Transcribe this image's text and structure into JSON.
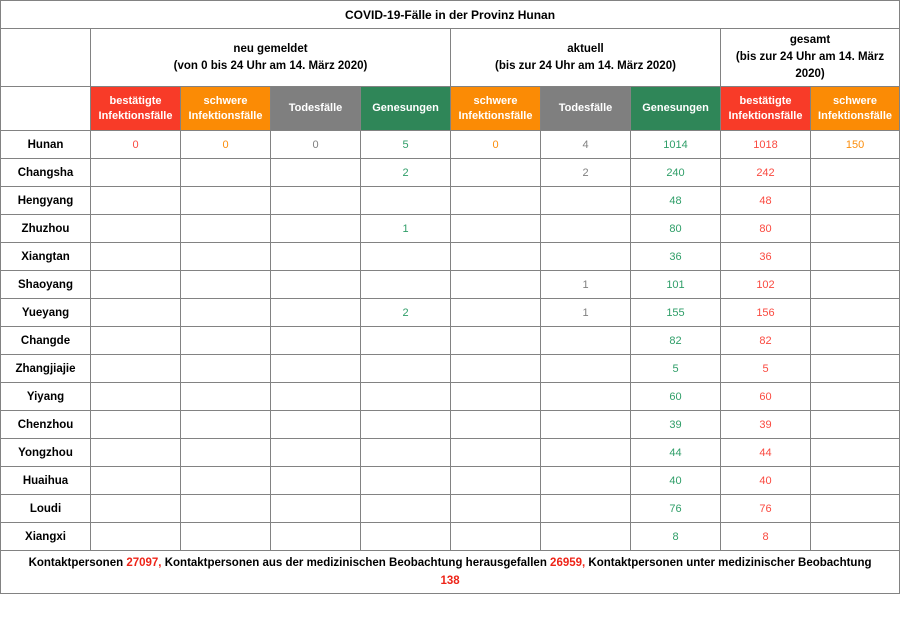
{
  "title": "COVID-19-Fälle in der Provinz Hunan",
  "colors": {
    "red": "#f83b28",
    "orange": "#fb8b05",
    "gray": "#7f7f7f",
    "green": "#2f8658",
    "text_red": "#fa4a40",
    "text_orange": "#fc8d0a",
    "text_gray": "#808080",
    "text_green": "#2f9e68",
    "footer_red": "#ee2418",
    "border": "#828282"
  },
  "chart_data": {
    "type": "table",
    "title": "COVID-19-Fälle in der Provinz Hunan",
    "column_groups": [
      {
        "label": "neu gemeldet",
        "period": "(von 0 bis 24 Uhr am 14. März 2020)",
        "span": 4
      },
      {
        "label": "aktuell",
        "period": "(bis zur 24 Uhr am 14. März 2020)",
        "span": 3
      },
      {
        "label": "gesamt",
        "period": "(bis zur 24 Uhr am 14. März 2020)",
        "span": 2
      }
    ],
    "columns": [
      {
        "label": "bestätigte Infektionsfälle",
        "color": "red"
      },
      {
        "label": "schwere Infektionsfälle",
        "color": "orange"
      },
      {
        "label": "Todesfälle",
        "color": "gray"
      },
      {
        "label": "Genesungen",
        "color": "green"
      },
      {
        "label": "schwere Infektionsfälle",
        "color": "orange"
      },
      {
        "label": "Todesfälle",
        "color": "gray"
      },
      {
        "label": "Genesungen",
        "color": "green"
      },
      {
        "label": "bestätigte Infektionsfälle",
        "color": "red"
      },
      {
        "label": "schwere Infektionsfälle",
        "color": "orange"
      }
    ],
    "rows": [
      {
        "region": "Hunan",
        "values": [
          "0",
          "0",
          "0",
          "5",
          "0",
          "4",
          "1014",
          "1018",
          "150"
        ]
      },
      {
        "region": "Changsha",
        "values": [
          "",
          "",
          "",
          "2",
          "",
          "2",
          "240",
          "242",
          ""
        ]
      },
      {
        "region": "Hengyang",
        "values": [
          "",
          "",
          "",
          "",
          "",
          "",
          "48",
          "48",
          ""
        ]
      },
      {
        "region": "Zhuzhou",
        "values": [
          "",
          "",
          "",
          "1",
          "",
          "",
          "80",
          "80",
          ""
        ]
      },
      {
        "region": "Xiangtan",
        "values": [
          "",
          "",
          "",
          "",
          "",
          "",
          "36",
          "36",
          ""
        ]
      },
      {
        "region": "Shaoyang",
        "values": [
          "",
          "",
          "",
          "",
          "",
          "1",
          "101",
          "102",
          ""
        ]
      },
      {
        "region": "Yueyang",
        "values": [
          "",
          "",
          "",
          "2",
          "",
          "1",
          "155",
          "156",
          ""
        ]
      },
      {
        "region": "Changde",
        "values": [
          "",
          "",
          "",
          "",
          "",
          "",
          "82",
          "82",
          ""
        ]
      },
      {
        "region": "Zhangjiajie",
        "values": [
          "",
          "",
          "",
          "",
          "",
          "",
          "5",
          "5",
          ""
        ]
      },
      {
        "region": "Yiyang",
        "values": [
          "",
          "",
          "",
          "",
          "",
          "",
          "60",
          "60",
          ""
        ]
      },
      {
        "region": "Chenzhou",
        "values": [
          "",
          "",
          "",
          "",
          "",
          "",
          "39",
          "39",
          ""
        ]
      },
      {
        "region": "Yongzhou",
        "values": [
          "",
          "",
          "",
          "",
          "",
          "",
          "44",
          "44",
          ""
        ]
      },
      {
        "region": "Huaihua",
        "values": [
          "",
          "",
          "",
          "",
          "",
          "",
          "40",
          "40",
          ""
        ]
      },
      {
        "region": "Loudi",
        "values": [
          "",
          "",
          "",
          "",
          "",
          "",
          "76",
          "76",
          ""
        ]
      },
      {
        "region": "Xiangxi",
        "values": [
          "",
          "",
          "",
          "",
          "",
          "",
          "8",
          "8",
          ""
        ]
      }
    ],
    "footer_segments": [
      {
        "text": "Kontaktpersonen "
      },
      {
        "text": "27097,",
        "red": true
      },
      {
        "text": " Kontaktpersonen aus der medizinischen Beobachtung herausgefallen "
      },
      {
        "text": "26959,",
        "red": true
      },
      {
        "text": " Kontaktpersonen unter medizinischer Beobachtung "
      },
      {
        "text": "138",
        "red": true,
        "newline": true
      }
    ]
  }
}
